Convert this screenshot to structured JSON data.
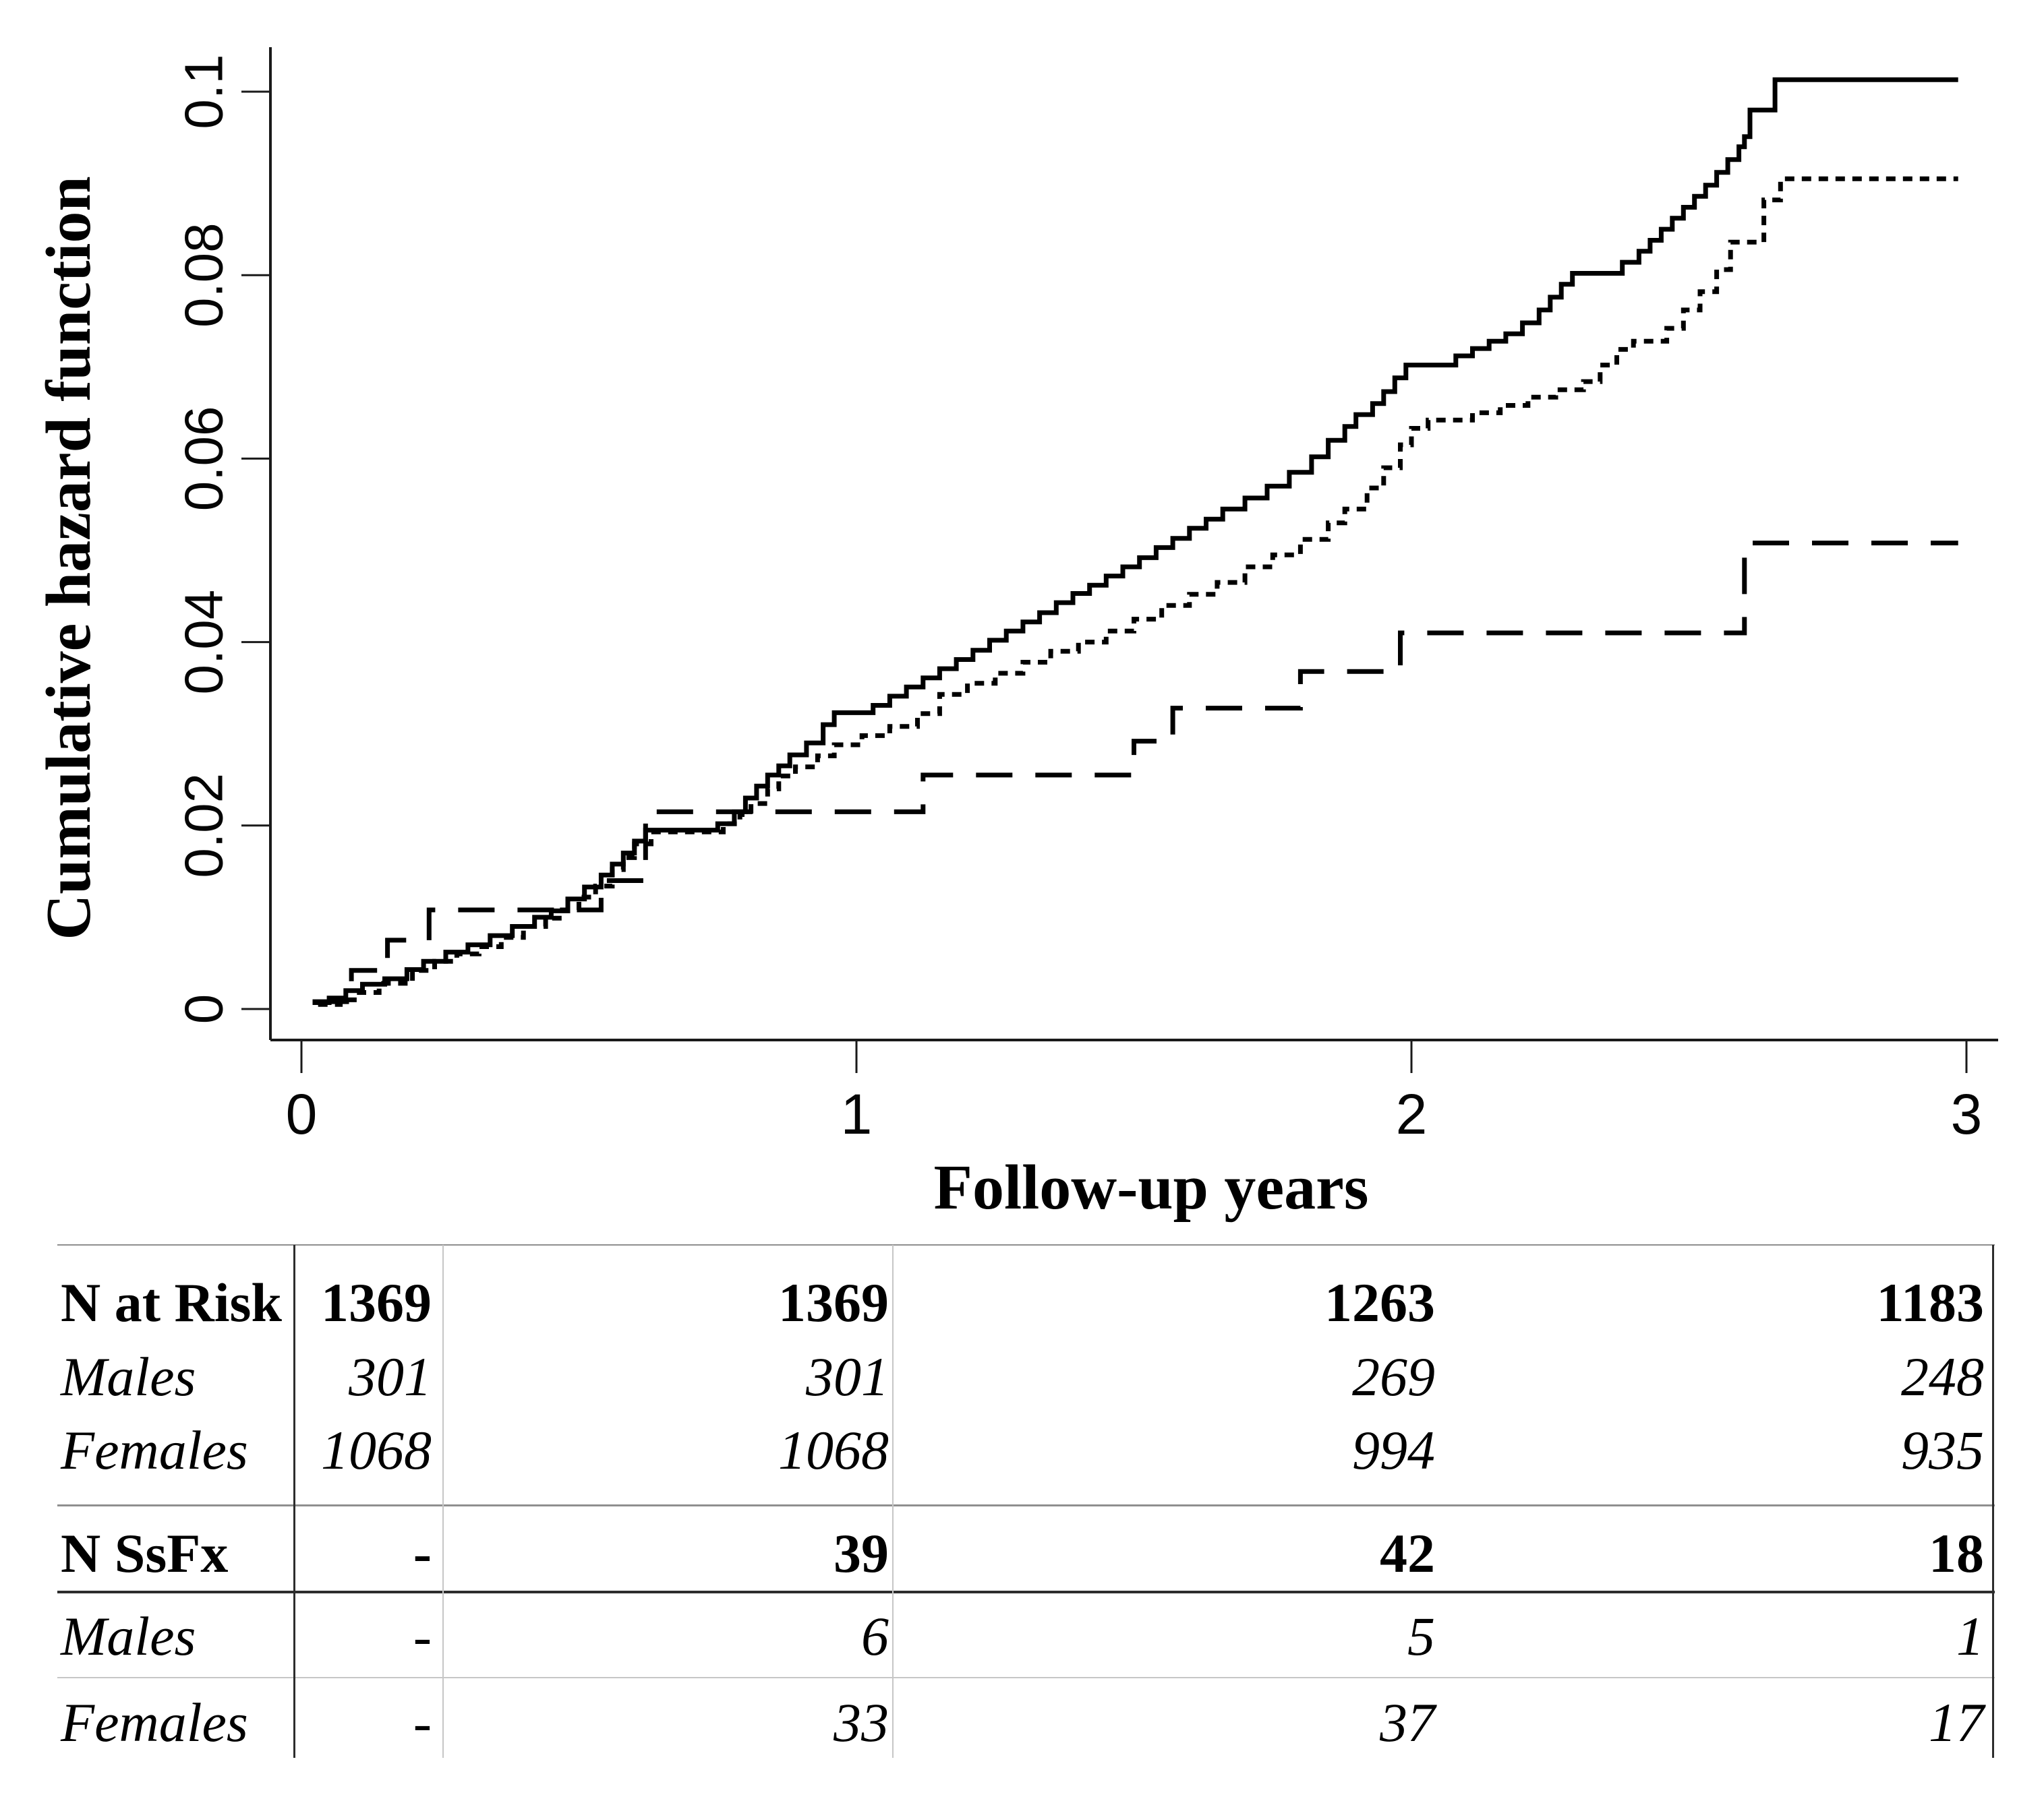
{
  "chart_data": {
    "type": "line",
    "variant": "step-after",
    "title": "",
    "xlabel": "Follow-up years",
    "ylabel": "Cumulative hazard function",
    "xlim": [
      0,
      3
    ],
    "ylim": [
      0,
      0.105
    ],
    "grid": false,
    "legend_position": "none",
    "x_ticks": [
      {
        "value": 0,
        "label": "0"
      },
      {
        "value": 1,
        "label": "1"
      },
      {
        "value": 2,
        "label": "2"
      },
      {
        "value": 3,
        "label": "3"
      }
    ],
    "y_ticks": [
      {
        "value": 0,
        "label": "0"
      },
      {
        "value": 0.02,
        "label": "0.02"
      },
      {
        "value": 0.04,
        "label": "0.04"
      },
      {
        "value": 0.06,
        "label": "0.06"
      },
      {
        "value": 0.08,
        "label": "0.08"
      },
      {
        "value": 0.1,
        "label": "0.1"
      }
    ],
    "x_end": 2.985,
    "series": [
      {
        "name": "solid-line",
        "style": "solid",
        "final_value": 0.1013,
        "points": [
          [
            0.02,
            0.0007
          ],
          [
            0.05,
            0.0012
          ],
          [
            0.08,
            0.002
          ],
          [
            0.11,
            0.0027
          ],
          [
            0.15,
            0.0033
          ],
          [
            0.19,
            0.0043
          ],
          [
            0.22,
            0.0052
          ],
          [
            0.26,
            0.0062
          ],
          [
            0.3,
            0.007
          ],
          [
            0.34,
            0.008
          ],
          [
            0.38,
            0.009
          ],
          [
            0.42,
            0.01
          ],
          [
            0.45,
            0.0107
          ],
          [
            0.48,
            0.012
          ],
          [
            0.51,
            0.0133
          ],
          [
            0.54,
            0.0146
          ],
          [
            0.56,
            0.0158
          ],
          [
            0.58,
            0.017
          ],
          [
            0.6,
            0.0183
          ],
          [
            0.62,
            0.0195
          ],
          [
            0.75,
            0.0202
          ],
          [
            0.78,
            0.0215
          ],
          [
            0.8,
            0.023
          ],
          [
            0.82,
            0.0243
          ],
          [
            0.84,
            0.0255
          ],
          [
            0.86,
            0.0265
          ],
          [
            0.88,
            0.0277
          ],
          [
            0.91,
            0.029
          ],
          [
            0.94,
            0.031
          ],
          [
            0.96,
            0.0323
          ],
          [
            1.03,
            0.0331
          ],
          [
            1.06,
            0.0341
          ],
          [
            1.09,
            0.0351
          ],
          [
            1.12,
            0.0361
          ],
          [
            1.15,
            0.0371
          ],
          [
            1.18,
            0.0381
          ],
          [
            1.21,
            0.0391
          ],
          [
            1.24,
            0.0402
          ],
          [
            1.27,
            0.0412
          ],
          [
            1.3,
            0.0422
          ],
          [
            1.33,
            0.0432
          ],
          [
            1.36,
            0.0443
          ],
          [
            1.39,
            0.0453
          ],
          [
            1.42,
            0.0462
          ],
          [
            1.45,
            0.0472
          ],
          [
            1.48,
            0.0482
          ],
          [
            1.51,
            0.0492
          ],
          [
            1.54,
            0.0503
          ],
          [
            1.57,
            0.0513
          ],
          [
            1.6,
            0.0524
          ],
          [
            1.63,
            0.0534
          ],
          [
            1.66,
            0.0545
          ],
          [
            1.7,
            0.0557
          ],
          [
            1.74,
            0.057
          ],
          [
            1.78,
            0.0585
          ],
          [
            1.82,
            0.0602
          ],
          [
            1.85,
            0.062
          ],
          [
            1.88,
            0.0635
          ],
          [
            1.9,
            0.0648
          ],
          [
            1.93,
            0.066
          ],
          [
            1.95,
            0.0673
          ],
          [
            1.97,
            0.0688
          ],
          [
            1.99,
            0.0702
          ],
          [
            2.08,
            0.0712
          ],
          [
            2.11,
            0.072
          ],
          [
            2.14,
            0.0728
          ],
          [
            2.17,
            0.0736
          ],
          [
            2.2,
            0.0748
          ],
          [
            2.23,
            0.0762
          ],
          [
            2.25,
            0.0776
          ],
          [
            2.27,
            0.079
          ],
          [
            2.29,
            0.0802
          ],
          [
            2.38,
            0.0814
          ],
          [
            2.41,
            0.0826
          ],
          [
            2.43,
            0.0838
          ],
          [
            2.45,
            0.085
          ],
          [
            2.47,
            0.0862
          ],
          [
            2.49,
            0.0874
          ],
          [
            2.51,
            0.0886
          ],
          [
            2.53,
            0.0898
          ],
          [
            2.55,
            0.0912
          ],
          [
            2.57,
            0.0926
          ],
          [
            2.59,
            0.094
          ],
          [
            2.6,
            0.0951
          ],
          [
            2.61,
            0.098
          ],
          [
            2.655,
            0.1013
          ]
        ]
      },
      {
        "name": "dotted-line",
        "style": "dotted",
        "final_value": 0.0905,
        "points": [
          [
            0.03,
            0.0005
          ],
          [
            0.07,
            0.001
          ],
          [
            0.1,
            0.0018
          ],
          [
            0.14,
            0.0028
          ],
          [
            0.2,
            0.0042
          ],
          [
            0.24,
            0.0052
          ],
          [
            0.28,
            0.006
          ],
          [
            0.32,
            0.0068
          ],
          [
            0.36,
            0.0078
          ],
          [
            0.4,
            0.009
          ],
          [
            0.44,
            0.0099
          ],
          [
            0.47,
            0.0108
          ],
          [
            0.5,
            0.0122
          ],
          [
            0.53,
            0.0134
          ],
          [
            0.56,
            0.0152
          ],
          [
            0.58,
            0.0165
          ],
          [
            0.6,
            0.018
          ],
          [
            0.63,
            0.0193
          ],
          [
            0.76,
            0.0202
          ],
          [
            0.79,
            0.0212
          ],
          [
            0.81,
            0.0224
          ],
          [
            0.84,
            0.024
          ],
          [
            0.86,
            0.0254
          ],
          [
            0.89,
            0.0264
          ],
          [
            0.93,
            0.0276
          ],
          [
            0.96,
            0.0288
          ],
          [
            1.01,
            0.0298
          ],
          [
            1.06,
            0.0308
          ],
          [
            1.11,
            0.0322
          ],
          [
            1.15,
            0.0343
          ],
          [
            1.2,
            0.0355
          ],
          [
            1.25,
            0.0366
          ],
          [
            1.3,
            0.0378
          ],
          [
            1.35,
            0.039
          ],
          [
            1.4,
            0.04
          ],
          [
            1.45,
            0.0412
          ],
          [
            1.5,
            0.0425
          ],
          [
            1.55,
            0.044
          ],
          [
            1.6,
            0.0452
          ],
          [
            1.65,
            0.0465
          ],
          [
            1.7,
            0.0482
          ],
          [
            1.75,
            0.0495
          ],
          [
            1.8,
            0.0512
          ],
          [
            1.85,
            0.053
          ],
          [
            1.88,
            0.0545
          ],
          [
            1.92,
            0.0568
          ],
          [
            1.95,
            0.059
          ],
          [
            1.98,
            0.0615
          ],
          [
            2.0,
            0.0633
          ],
          [
            2.03,
            0.0642
          ],
          [
            2.11,
            0.065
          ],
          [
            2.16,
            0.0658
          ],
          [
            2.21,
            0.0667
          ],
          [
            2.26,
            0.0675
          ],
          [
            2.31,
            0.0684
          ],
          [
            2.34,
            0.0702
          ],
          [
            2.37,
            0.0719
          ],
          [
            2.4,
            0.0728
          ],
          [
            2.46,
            0.0742
          ],
          [
            2.49,
            0.0762
          ],
          [
            2.52,
            0.0782
          ],
          [
            2.55,
            0.0806
          ],
          [
            2.575,
            0.0836
          ],
          [
            2.635,
            0.0882
          ],
          [
            2.665,
            0.0905
          ]
        ]
      },
      {
        "name": "dashed-line",
        "style": "long-dash",
        "final_value": 0.0508,
        "points": [
          [
            0.02,
            0.0008
          ],
          [
            0.09,
            0.0042
          ],
          [
            0.155,
            0.0075
          ],
          [
            0.23,
            0.0108
          ],
          [
            0.54,
            0.014
          ],
          [
            0.62,
            0.0215
          ],
          [
            1.12,
            0.0255
          ],
          [
            1.5,
            0.0292
          ],
          [
            1.57,
            0.0328
          ],
          [
            1.8,
            0.0368
          ],
          [
            1.98,
            0.041
          ],
          [
            2.6,
            0.0508
          ]
        ]
      }
    ]
  },
  "risk_table": {
    "time_columns": [
      "0",
      "1",
      "2",
      "3"
    ],
    "rows": [
      {
        "label": "N at Risk",
        "emphasis": "bold",
        "values": [
          "1369",
          "1369",
          "1263",
          "1183"
        ]
      },
      {
        "label": "Males",
        "emphasis": "italic",
        "values": [
          "301",
          "301",
          "269",
          "248"
        ]
      },
      {
        "label": "Females",
        "emphasis": "italic",
        "values": [
          "1068",
          "1068",
          "994",
          "935"
        ]
      },
      {
        "label": "N SsFx",
        "emphasis": "bold",
        "values": [
          "-",
          "39",
          "42",
          "18"
        ]
      },
      {
        "label": "Males",
        "emphasis": "italic",
        "values": [
          "-",
          "6",
          "5",
          "1"
        ]
      },
      {
        "label": "Females",
        "emphasis": "italic",
        "values": [
          "-",
          "33",
          "37",
          "17"
        ]
      }
    ]
  },
  "colors": {
    "ink": "#000000",
    "axis": "#1a1a1a",
    "table_line_dark": "#2d2d2d",
    "table_line_medium": "#8f8f8f",
    "table_line_light": "#c6c6c6",
    "background": "#ffffff"
  }
}
